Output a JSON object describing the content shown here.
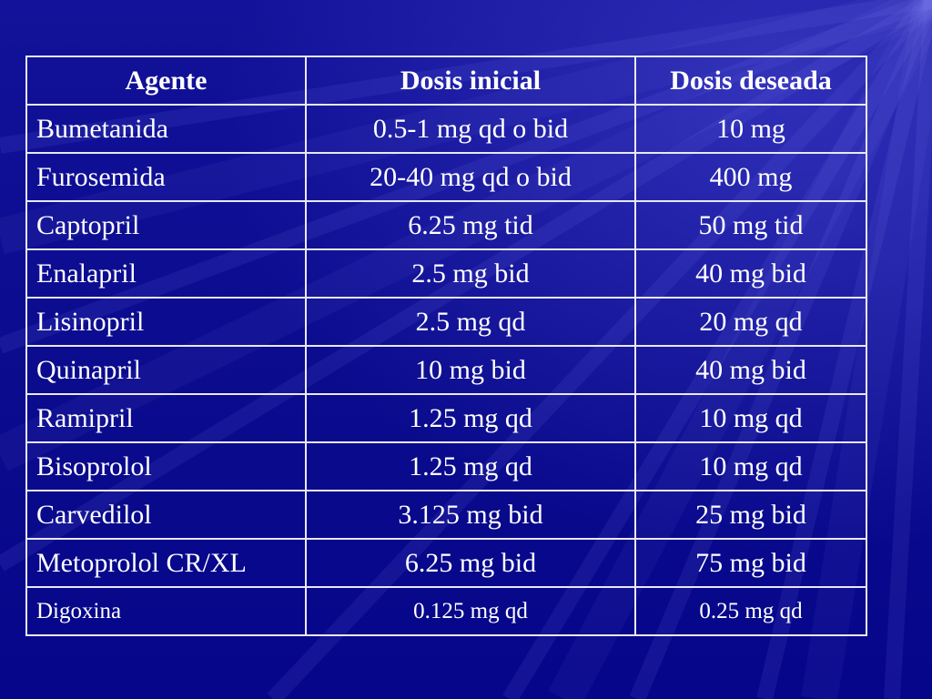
{
  "table": {
    "headers": [
      "Agente",
      "Dosis inicial",
      "Dosis deseada"
    ],
    "rows": [
      [
        "Bumetanida",
        "0.5-1 mg qd o bid",
        "10 mg"
      ],
      [
        "Furosemida",
        "20-40 mg qd o bid",
        "400 mg"
      ],
      [
        "Captopril",
        "6.25 mg tid",
        "50 mg tid"
      ],
      [
        "Enalapril",
        "2.5 mg bid",
        "40 mg bid"
      ],
      [
        "Lisinopril",
        "2.5 mg qd",
        "20 mg qd"
      ],
      [
        "Quinapril",
        "10 mg bid",
        "40 mg bid"
      ],
      [
        "Ramipril",
        "1.25 mg qd",
        "10 mg qd"
      ],
      [
        "Bisoprolol",
        "1.25 mg qd",
        "10 mg qd"
      ],
      [
        "Carvedilol",
        "3.125 mg bid",
        "25 mg bid"
      ],
      [
        "Metoprolol CR/XL",
        "6.25 mg bid",
        "75 mg bid"
      ],
      [
        "Digoxina",
        "0.125 mg qd",
        "0.25 mg qd"
      ]
    ]
  },
  "colors": {
    "background": "#0a0a8c",
    "text": "#ffffff",
    "border": "#e8e8f0"
  }
}
